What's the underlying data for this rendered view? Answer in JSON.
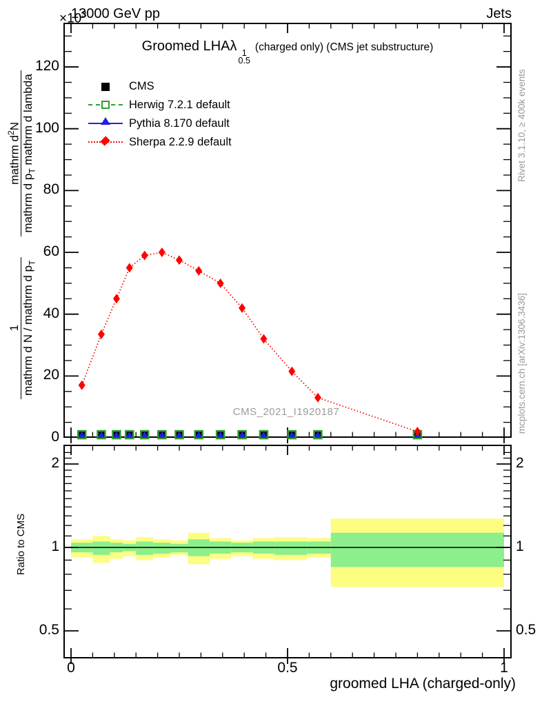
{
  "header": {
    "left": "13000 GeV pp",
    "right": "Jets"
  },
  "power": {
    "base": "×10",
    "exp": "3"
  },
  "title": {
    "main": "Groomed LHA",
    "lambda": "λ",
    "sup": "1",
    "sub": "0.5",
    "suffix": "(charged only) (CMS jet substructure)"
  },
  "legend": {
    "items": [
      {
        "label": "CMS",
        "marker": "black-filled-square"
      },
      {
        "label": "Herwig 7.2.1 default",
        "marker": "green-open-square-dashed-line"
      },
      {
        "label": "Pythia 8.170 default",
        "marker": "blue-filled-triangle-solid-line"
      },
      {
        "label": "Sherpa 2.2.9 default",
        "marker": "red-filled-diamond-dotted-line"
      }
    ]
  },
  "watermark": "CMS_2021_I1920187",
  "ylabel": {
    "frac1": {
      "num": "1",
      "den_main": "mathrm d N / mathrm d p",
      "den_sub": "T"
    },
    "frac2": {
      "num_main": "mathrm d",
      "num_sup": "2",
      "num_tail": "N",
      "den_a": "mathrm d p",
      "den_sub": "T",
      "den_b": " mathrm d lambda"
    }
  },
  "ratio_label": "Ratio to CMS",
  "xaxis": {
    "title": "groomed LHA (charged-only)"
  },
  "side_notes": {
    "top": "Rivet 3.1.10, ≥ 400k events",
    "bottom": "mcplots.cern.ch [arXiv:1306.3436]"
  },
  "axes": {
    "main_y": {
      "values": [
        0,
        20,
        40,
        60,
        80,
        100,
        120
      ],
      "labels": [
        "0",
        "20",
        "40",
        "60",
        "80",
        "100",
        "120"
      ]
    },
    "x": {
      "values": [
        0,
        0.5,
        1
      ],
      "labels": [
        "0",
        "0.5",
        "1"
      ]
    },
    "ratio_y": {
      "values": [
        0.5,
        1,
        2
      ],
      "labels": [
        "0.5",
        "1",
        "2"
      ]
    }
  },
  "colors": {
    "herwig": "#2e9e2e",
    "pythia": "#2020dd",
    "sherpa": "#ff0000",
    "cms": "#000000",
    "band_green": "#8cef8c",
    "band_yellow": "#fdfd82",
    "gray": "#999999",
    "watermark": "#9c9c9c"
  },
  "chart_data": {
    "type": "line",
    "title": "Groomed LHA lambda^1_0.5 (charged only) (CMS jet substructure)",
    "xlabel": "groomed LHA (charged-only)",
    "ylabel": "1/(dN/dp_T) d^2N/(dp_T dlambda)",
    "y_units": "10^3",
    "xlim": [
      0,
      1
    ],
    "ylim": [
      0,
      134
    ],
    "x": [
      0.025,
      0.07,
      0.105,
      0.135,
      0.17,
      0.21,
      0.25,
      0.295,
      0.345,
      0.395,
      0.445,
      0.51,
      0.57,
      0.8
    ],
    "series": [
      {
        "name": "CMS",
        "marker": "filled-square",
        "line": "none",
        "values": [
          1,
          1,
          1,
          1,
          1,
          1,
          1,
          1,
          1,
          1,
          1,
          1,
          1,
          1
        ]
      },
      {
        "name": "Herwig 7.2.1 default",
        "marker": "open-square",
        "line": "dashed",
        "values": [
          1,
          1,
          1,
          1,
          1,
          1,
          1,
          1,
          1,
          1,
          1,
          1,
          1,
          1
        ]
      },
      {
        "name": "Pythia 8.170 default",
        "marker": "filled-triangle",
        "line": "solid",
        "values": [
          1,
          1,
          1,
          1,
          1,
          1,
          1,
          1,
          1,
          1,
          1,
          1,
          1,
          1
        ]
      },
      {
        "name": "Sherpa 2.2.9 default",
        "marker": "filled-diamond",
        "line": "dotted",
        "values": [
          17,
          33.5,
          45,
          55,
          59,
          60,
          57.5,
          54,
          50,
          42,
          32,
          21.5,
          13,
          2
        ]
      }
    ],
    "ratio_panel": {
      "ylabel": "Ratio to CMS",
      "yscale": "log",
      "ylim": [
        0.4,
        2.35
      ],
      "reference": 1,
      "bins": [
        {
          "x0": 0.0,
          "x1": 0.05,
          "green": [
            0.96,
            1.04
          ],
          "yellow": [
            0.92,
            1.07
          ]
        },
        {
          "x0": 0.05,
          "x1": 0.09,
          "green": [
            0.94,
            1.05
          ],
          "yellow": [
            0.88,
            1.1
          ]
        },
        {
          "x0": 0.09,
          "x1": 0.12,
          "green": [
            0.96,
            1.04
          ],
          "yellow": [
            0.91,
            1.07
          ]
        },
        {
          "x0": 0.12,
          "x1": 0.15,
          "green": [
            0.97,
            1.03
          ],
          "yellow": [
            0.93,
            1.06
          ]
        },
        {
          "x0": 0.15,
          "x1": 0.19,
          "green": [
            0.94,
            1.05
          ],
          "yellow": [
            0.9,
            1.09
          ]
        },
        {
          "x0": 0.19,
          "x1": 0.23,
          "green": [
            0.95,
            1.04
          ],
          "yellow": [
            0.92,
            1.07
          ]
        },
        {
          "x0": 0.23,
          "x1": 0.27,
          "green": [
            0.96,
            1.03
          ],
          "yellow": [
            0.94,
            1.06
          ]
        },
        {
          "x0": 0.27,
          "x1": 0.32,
          "green": [
            0.93,
            1.07
          ],
          "yellow": [
            0.87,
            1.13
          ]
        },
        {
          "x0": 0.32,
          "x1": 0.37,
          "green": [
            0.95,
            1.05
          ],
          "yellow": [
            0.91,
            1.08
          ]
        },
        {
          "x0": 0.37,
          "x1": 0.42,
          "green": [
            0.96,
            1.04
          ],
          "yellow": [
            0.93,
            1.06
          ]
        },
        {
          "x0": 0.42,
          "x1": 0.47,
          "green": [
            0.95,
            1.05
          ],
          "yellow": [
            0.91,
            1.08
          ]
        },
        {
          "x0": 0.47,
          "x1": 0.545,
          "green": [
            0.94,
            1.05
          ],
          "yellow": [
            0.9,
            1.09
          ]
        },
        {
          "x0": 0.545,
          "x1": 0.6,
          "green": [
            0.95,
            1.05
          ],
          "yellow": [
            0.92,
            1.08
          ]
        },
        {
          "x0": 0.6,
          "x1": 1.0,
          "green": [
            0.85,
            1.13
          ],
          "yellow": [
            0.72,
            1.27
          ]
        }
      ]
    }
  }
}
